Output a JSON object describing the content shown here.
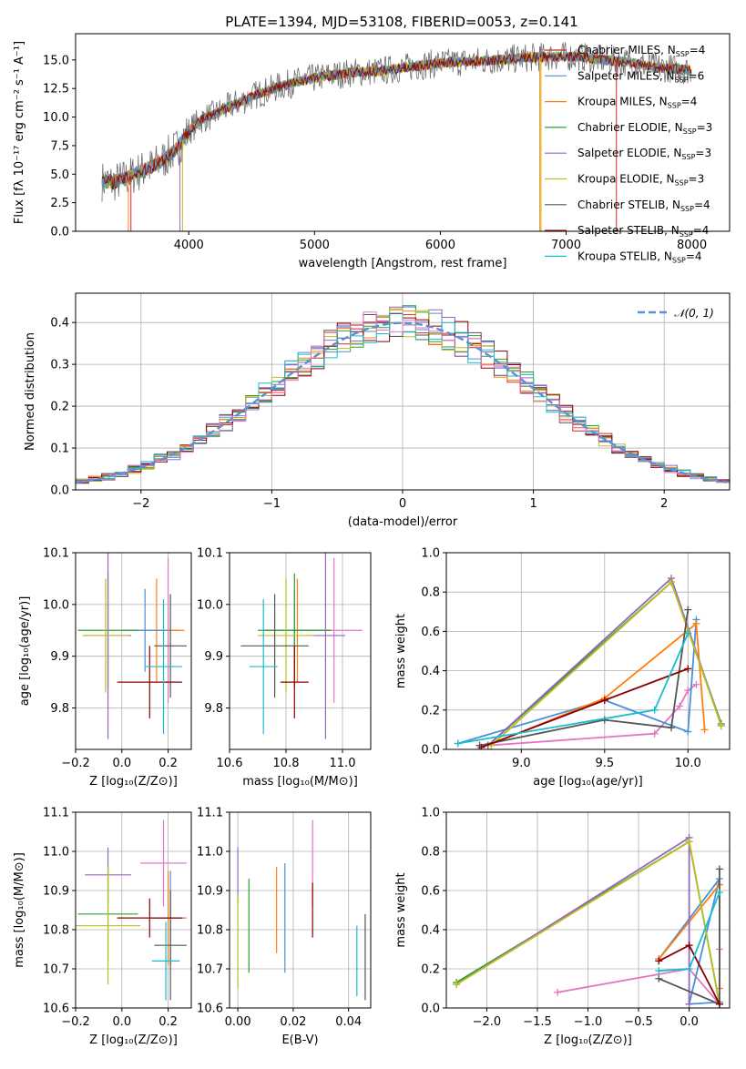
{
  "colors": [
    "#d62728",
    "#4a90d9",
    "#1f77b4",
    "#2ca02c",
    "#9467bd",
    "#bcbd22",
    "#555555",
    "#8b0000",
    "#17becf"
  ],
  "figure": {
    "title": "PLATE=1394, MJD=53108, FIBERID=0053, z=0.141"
  },
  "chart_data": [
    {
      "id": "spectrum",
      "type": "line",
      "title": "PLATE=1394, MJD=53108, FIBERID=0053, z=0.141",
      "xlabel": "wavelength [Angstrom, rest frame]",
      "ylabel": "Flux [fλ 10⁻¹⁷ erg cm⁻² s⁻¹ A⁻¹]",
      "xlim": [
        3100,
        8300
      ],
      "ylim": [
        0,
        17.3
      ],
      "xticks": [
        4000,
        5000,
        6000,
        7000,
        8000
      ],
      "yticks": [
        0.0,
        2.5,
        5.0,
        7.5,
        10.0,
        12.5,
        15.0
      ],
      "xtick_labels": [
        "4000",
        "5000",
        "6000",
        "7000",
        "8000"
      ],
      "ytick_labels": [
        "0.0",
        "2.5",
        "5.0",
        "7.5",
        "10.0",
        "12.5",
        "15.0"
      ],
      "grid": false,
      "legend_position": "top-right",
      "series": [
        {
          "name": "Chabrier MILES, N_SSP=4",
          "color": "#d62728"
        },
        {
          "name": "Salpeter MILES, N_SSP=6",
          "color": "#4a90d9"
        },
        {
          "name": "Kroupa MILES, N_SSP=4",
          "color": "#ff7f0e"
        },
        {
          "name": "Chabrier ELODIE, N_SSP=3",
          "color": "#2ca02c"
        },
        {
          "name": "Salpeter ELODIE, N_SSP=3",
          "color": "#9467bd"
        },
        {
          "name": "Kroupa ELODIE, N_SSP=3",
          "color": "#bcbd22"
        },
        {
          "name": "Chabrier STELIB, N_SSP=4",
          "color": "#555555"
        },
        {
          "name": "Salpeter STELIB, N_SSP=4",
          "color": "#8b0000"
        },
        {
          "name": "Kroupa STELIB, N_SSP=4",
          "color": "#17becf"
        }
      ],
      "legend_labels": [
        "Chabrier MILES, N",
        "Salpeter MILES, N",
        "Kroupa MILES, N",
        "Chabrier ELODIE, N",
        "Salpeter ELODIE, N",
        "Kroupa ELODIE, N",
        "Chabrier STELIB, N",
        "Salpeter STELIB, N",
        "Kroupa STELIB, N"
      ],
      "legend_sub": "SSP",
      "legend_counts": [
        "=4",
        "=6",
        "=4",
        "=3",
        "=3",
        "=3",
        "=4",
        "=4",
        "=4"
      ],
      "envelope_x": [
        3300,
        3400,
        3500,
        3600,
        3700,
        3800,
        3900,
        4000,
        4100,
        4200,
        4300,
        4400,
        4500,
        4700,
        4900,
        5100,
        5300,
        5500,
        5700,
        5900,
        6100,
        6300,
        6500,
        6700,
        6900,
        7100,
        7300,
        7500,
        7700,
        7900,
        8000
      ],
      "envelope_y": [
        4.4,
        4.3,
        4.6,
        5.2,
        5.6,
        6.3,
        7.2,
        8.8,
        9.8,
        10.2,
        10.8,
        11.3,
        11.8,
        12.6,
        13.2,
        13.6,
        13.9,
        14.0,
        14.3,
        14.6,
        14.8,
        14.9,
        15.0,
        15.2,
        15.3,
        15.3,
        15.0,
        14.8,
        14.4,
        14.2,
        14.1
      ]
    },
    {
      "id": "residuals",
      "type": "step",
      "xlabel": "(data-model)/error",
      "ylabel": "Normed distribution",
      "xlim": [
        -2.5,
        2.5
      ],
      "ylim": [
        0.0,
        0.47
      ],
      "xticks": [
        -2,
        -1,
        0,
        1,
        2
      ],
      "yticks": [
        0.0,
        0.1,
        0.2,
        0.3,
        0.4
      ],
      "xtick_labels": [
        "−2",
        "−1",
        "0",
        "1",
        "2"
      ],
      "ytick_labels": [
        "0.0",
        "0.1",
        "0.2",
        "0.3",
        "0.4"
      ],
      "grid": true,
      "legend_position": "top-right",
      "legend": "𝒩(0, 1)",
      "gaussian": {
        "mean": 0,
        "sigma": 1,
        "color": "#5b8fd6"
      },
      "bin_width": 0.1
    },
    {
      "id": "age-vs-Z",
      "type": "errorbar",
      "xlabel": "Z [log₁₀(Z/Z⊙)]",
      "ylabel": "age  [log₁₀(age/yr)]",
      "xlim": [
        -0.2,
        0.3
      ],
      "ylim": [
        9.72,
        10.1
      ],
      "xticks": [
        -0.2,
        0.0,
        0.2
      ],
      "yticks": [
        9.8,
        9.9,
        10.0,
        10.1
      ],
      "xtick_labels": [
        "−0.2",
        "0.0",
        "0.2"
      ],
      "ytick_labels": [
        "9.8",
        "9.9",
        "10.0",
        "10.1"
      ],
      "grid": true,
      "points": [
        {
          "x": 0.2,
          "y": 9.95,
          "xerr": 0.05,
          "yerr": 0.14,
          "color": "#e377c2"
        },
        {
          "x": 0.15,
          "y": 9.95,
          "xerr": 0.12,
          "yerr": 0.1,
          "color": "#ff7f0e"
        },
        {
          "x": 0.1,
          "y": 9.95,
          "xerr": 0.1,
          "yerr": 0.08,
          "color": "#4a90d9"
        },
        {
          "x": -0.06,
          "y": 9.95,
          "xerr": 0.13,
          "yerr": 0.11,
          "color": "#2ca02c"
        },
        {
          "x": -0.06,
          "y": 9.94,
          "xerr": 0.1,
          "yerr": 0.2,
          "color": "#9467bd"
        },
        {
          "x": -0.07,
          "y": 9.94,
          "xerr": 0.1,
          "yerr": 0.11,
          "color": "#bcbd22"
        },
        {
          "x": 0.21,
          "y": 9.92,
          "xerr": 0.07,
          "yerr": 0.1,
          "color": "#555555"
        },
        {
          "x": 0.12,
          "y": 9.85,
          "xerr": 0.14,
          "yerr": 0.07,
          "color": "#8b0000"
        },
        {
          "x": 0.18,
          "y": 9.88,
          "xerr": 0.08,
          "yerr": 0.13,
          "color": "#17becf"
        }
      ]
    },
    {
      "id": "age-vs-mass",
      "type": "errorbar",
      "xlabel": "mass [log₁₀(M/M⊙)]",
      "ylabel": "",
      "xlim": [
        10.6,
        11.1
      ],
      "ylim": [
        9.72,
        10.1
      ],
      "xticks": [
        10.6,
        10.8,
        11.0
      ],
      "yticks": [
        9.8,
        9.9,
        10.0,
        10.1
      ],
      "xtick_labels": [
        "10.6",
        "10.8",
        "11.0"
      ],
      "ytick_labels": [
        "9.8",
        "9.9",
        "10.0",
        "10.1"
      ],
      "grid": true,
      "points": [
        {
          "x": 10.97,
          "y": 9.95,
          "xerr": 0.1,
          "yerr": 0.14,
          "color": "#e377c2"
        },
        {
          "x": 10.84,
          "y": 9.95,
          "xerr": 0.12,
          "yerr": 0.1,
          "color": "#ff7f0e"
        },
        {
          "x": 10.83,
          "y": 9.95,
          "xerr": 0.1,
          "yerr": 0.08,
          "color": "#4a90d9"
        },
        {
          "x": 10.83,
          "y": 9.95,
          "xerr": 0.13,
          "yerr": 0.11,
          "color": "#2ca02c"
        },
        {
          "x": 10.94,
          "y": 9.94,
          "xerr": 0.07,
          "yerr": 0.2,
          "color": "#9467bd"
        },
        {
          "x": 10.8,
          "y": 9.94,
          "xerr": 0.1,
          "yerr": 0.11,
          "color": "#bcbd22"
        },
        {
          "x": 10.76,
          "y": 9.92,
          "xerr": 0.12,
          "yerr": 0.1,
          "color": "#555555"
        },
        {
          "x": 10.83,
          "y": 9.85,
          "xerr": 0.05,
          "yerr": 0.07,
          "color": "#8b0000"
        },
        {
          "x": 10.72,
          "y": 9.88,
          "xerr": 0.05,
          "yerr": 0.13,
          "color": "#17becf"
        }
      ]
    },
    {
      "id": "weight-vs-age",
      "type": "line",
      "xlabel": "age  [log₁₀(age/yr)]",
      "ylabel": "mass weight",
      "xlim": [
        8.55,
        10.25
      ],
      "ylim": [
        0.0,
        1.0
      ],
      "xticks": [
        9.0,
        9.5,
        10.0
      ],
      "yticks": [
        0.0,
        0.2,
        0.4,
        0.6,
        0.8,
        1.0
      ],
      "xtick_labels": [
        "9.0",
        "9.5",
        "10.0"
      ],
      "ytick_labels": [
        "0.0",
        "0.2",
        "0.4",
        "0.6",
        "0.8",
        "1.0"
      ],
      "grid": true,
      "series": [
        {
          "color": "#e377c2",
          "x": [
            8.8,
            9.8,
            9.95,
            10.0,
            10.05
          ],
          "y": [
            0.02,
            0.08,
            0.22,
            0.3,
            0.33
          ]
        },
        {
          "color": "#4a90d9",
          "x": [
            8.62,
            9.5,
            10.0,
            10.05
          ],
          "y": [
            0.03,
            0.25,
            0.09,
            0.66
          ]
        },
        {
          "color": "#ff7f0e",
          "x": [
            8.8,
            9.5,
            10.05,
            10.1
          ],
          "y": [
            0.02,
            0.26,
            0.64,
            0.1
          ]
        },
        {
          "color": "#2ca02c",
          "x": [
            8.8,
            9.9,
            10.2
          ],
          "y": [
            0.02,
            0.85,
            0.13
          ]
        },
        {
          "color": "#9467bd",
          "x": [
            8.8,
            9.9,
            10.2
          ],
          "y": [
            0.02,
            0.87,
            0.12
          ]
        },
        {
          "color": "#bcbd22",
          "x": [
            8.82,
            9.9,
            10.2
          ],
          "y": [
            0.02,
            0.85,
            0.12
          ]
        },
        {
          "color": "#555555",
          "x": [
            8.75,
            9.5,
            9.9,
            10.0
          ],
          "y": [
            0.02,
            0.15,
            0.11,
            0.71
          ]
        },
        {
          "color": "#8b0000",
          "x": [
            8.76,
            9.5,
            10.0
          ],
          "y": [
            0.01,
            0.25,
            0.41
          ]
        },
        {
          "color": "#17becf",
          "x": [
            8.62,
            9.8,
            10.0
          ],
          "y": [
            0.03,
            0.2,
            0.59
          ]
        }
      ]
    },
    {
      "id": "mass-vs-Z",
      "type": "errorbar",
      "xlabel": "Z [log₁₀(Z/Z⊙)]",
      "ylabel": "mass [log₁₀(M/M⊙)]",
      "xlim": [
        -0.2,
        0.3
      ],
      "ylim": [
        10.6,
        11.1
      ],
      "xticks": [
        -0.2,
        0.0,
        0.2
      ],
      "yticks": [
        10.6,
        10.7,
        10.8,
        10.9,
        11.0,
        11.1
      ],
      "xtick_labels": [
        "−0.2",
        "0.0",
        "0.2"
      ],
      "ytick_labels": [
        "10.6",
        "10.7",
        "10.8",
        "10.9",
        "11.0",
        "11.1"
      ],
      "grid": true,
      "points": [
        {
          "x": 0.18,
          "y": 10.97,
          "xerr": 0.1,
          "yerr": 0.11,
          "color": "#e377c2"
        },
        {
          "x": 0.2,
          "y": 10.83,
          "xerr": 0.08,
          "yerr": 0.12,
          "color": "#ff7f0e"
        },
        {
          "x": 0.21,
          "y": 10.83,
          "xerr": 0.06,
          "yerr": 0.12,
          "color": "#4a90d9"
        },
        {
          "x": -0.06,
          "y": 10.84,
          "xerr": 0.13,
          "yerr": 0.12,
          "color": "#2ca02c"
        },
        {
          "x": -0.06,
          "y": 10.94,
          "xerr": 0.1,
          "yerr": 0.07,
          "color": "#9467bd"
        },
        {
          "x": -0.06,
          "y": 10.81,
          "xerr": 0.14,
          "yerr": 0.15,
          "color": "#bcbd22"
        },
        {
          "x": 0.21,
          "y": 10.76,
          "xerr": 0.07,
          "yerr": 0.14,
          "color": "#555555"
        },
        {
          "x": 0.12,
          "y": 10.83,
          "xerr": 0.14,
          "yerr": 0.05,
          "color": "#8b0000"
        },
        {
          "x": 0.19,
          "y": 10.72,
          "xerr": 0.06,
          "yerr": 0.1,
          "color": "#17becf"
        }
      ]
    },
    {
      "id": "mass-vs-EBV",
      "type": "errorbar",
      "xlabel": "E(B-V)",
      "ylabel": "",
      "xlim": [
        -0.003,
        0.048
      ],
      "ylim": [
        10.6,
        11.1
      ],
      "xticks": [
        0.0,
        0.02,
        0.04
      ],
      "yticks": [
        10.6,
        10.7,
        10.8,
        10.9,
        11.0,
        11.1
      ],
      "xtick_labels": [
        "0.00",
        "0.02",
        "0.04"
      ],
      "ytick_labels": [
        "10.6",
        "10.7",
        "10.8",
        "10.9",
        "11.0",
        "11.1"
      ],
      "grid": true,
      "points": [
        {
          "x": 0.027,
          "y": 10.97,
          "xerr": 0.0,
          "yerr": 0.11,
          "color": "#e377c2"
        },
        {
          "x": 0.014,
          "y": 10.85,
          "xerr": 0.0,
          "yerr": 0.11,
          "color": "#ff7f0e"
        },
        {
          "x": 0.017,
          "y": 10.83,
          "xerr": 0.0,
          "yerr": 0.14,
          "color": "#4a90d9"
        },
        {
          "x": 0.004,
          "y": 10.81,
          "xerr": 0.0,
          "yerr": 0.12,
          "color": "#2ca02c"
        },
        {
          "x": 0.0,
          "y": 10.94,
          "xerr": 0.0,
          "yerr": 0.07,
          "color": "#9467bd"
        },
        {
          "x": 0.0,
          "y": 10.77,
          "xerr": 0.0,
          "yerr": 0.12,
          "color": "#bcbd22"
        },
        {
          "x": 0.046,
          "y": 10.73,
          "xerr": 0.0,
          "yerr": 0.11,
          "color": "#555555"
        },
        {
          "x": 0.027,
          "y": 10.85,
          "xerr": 0.0,
          "yerr": 0.07,
          "color": "#8b0000"
        },
        {
          "x": 0.043,
          "y": 10.72,
          "xerr": 0.0,
          "yerr": 0.09,
          "color": "#17becf"
        }
      ]
    },
    {
      "id": "weight-vs-Z",
      "type": "line",
      "xlabel": "Z [log₁₀(Z/Z⊙)]",
      "ylabel": "mass weight",
      "xlim": [
        -2.4,
        0.4
      ],
      "ylim": [
        0.0,
        1.0
      ],
      "xticks": [
        -2.0,
        -1.5,
        -1.0,
        -0.5,
        0.0
      ],
      "yticks": [
        0.0,
        0.2,
        0.4,
        0.6,
        0.8,
        1.0
      ],
      "xtick_labels": [
        "−2.0",
        "−1.5",
        "−1.0",
        "−0.5",
        "0.0"
      ],
      "ytick_labels": [
        "0.0",
        "0.2",
        "0.4",
        "0.6",
        "0.8",
        "1.0"
      ],
      "grid": true,
      "series": [
        {
          "color": "#e377c2",
          "x": [
            -1.3,
            0.0,
            0.3,
            0.3
          ],
          "y": [
            0.08,
            0.2,
            0.02,
            0.3
          ]
        },
        {
          "color": "#4a90d9",
          "x": [
            -0.3,
            0.3,
            0.0,
            0.3
          ],
          "y": [
            0.25,
            0.66,
            0.02,
            0.03
          ]
        },
        {
          "color": "#ff7f0e",
          "x": [
            -0.3,
            0.3,
            0.3
          ],
          "y": [
            0.25,
            0.63,
            0.1
          ]
        },
        {
          "color": "#2ca02c",
          "x": [
            -2.3,
            0.0,
            0.3
          ],
          "y": [
            0.13,
            0.85,
            0.02
          ]
        },
        {
          "color": "#9467bd",
          "x": [
            -2.3,
            0.0,
            0.0
          ],
          "y": [
            0.12,
            0.87,
            0.02
          ]
        },
        {
          "color": "#bcbd22",
          "x": [
            -2.3,
            0.0,
            0.3
          ],
          "y": [
            0.12,
            0.85,
            0.02
          ]
        },
        {
          "color": "#555555",
          "x": [
            -0.3,
            0.3,
            0.3
          ],
          "y": [
            0.15,
            0.02,
            0.71
          ]
        },
        {
          "color": "#8b0000",
          "x": [
            -0.3,
            0.0,
            0.3
          ],
          "y": [
            0.24,
            0.32,
            0.02
          ]
        },
        {
          "color": "#17becf",
          "x": [
            -0.3,
            0.0,
            0.3
          ],
          "y": [
            0.19,
            0.2,
            0.59
          ]
        }
      ]
    }
  ]
}
